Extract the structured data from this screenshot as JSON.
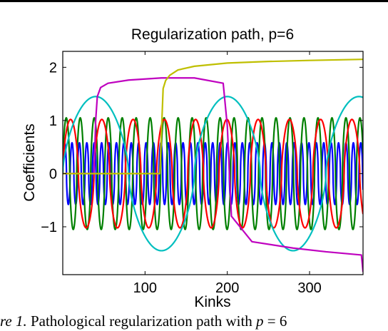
{
  "chart_data": {
    "type": "line",
    "title": "Regularization path, p=6",
    "xlabel": "Kinks",
    "ylabel": "Coefficients",
    "xlim": [
      0,
      365
    ],
    "ylim": [
      -1.9,
      2.3
    ],
    "xticks": [
      100,
      200,
      300
    ],
    "yticks": [
      -1,
      0,
      1,
      2
    ],
    "ytick_labels": [
      "−1",
      "0",
      "1",
      "2"
    ],
    "grid": false,
    "legend": "none",
    "series": [
      {
        "color": "#0000ff",
        "shape": "oscillation",
        "period": 9,
        "amplitude": 0.58,
        "start": 0,
        "end": 365
      },
      {
        "color": "#008000",
        "shape": "oscillation",
        "period": 17,
        "amplitude": 1.05,
        "start": 0,
        "end": 365
      },
      {
        "color": "#ff0000",
        "shape": "oscillation",
        "period": 38,
        "amplitude": 1.02,
        "start": 0,
        "end": 365
      },
      {
        "color": "#00bfbf",
        "shape": "oscillation",
        "period": 160,
        "amplitude": 1.45,
        "start": 0,
        "end": 365
      },
      {
        "color": "#bf00bf",
        "shape": "path",
        "x": [
          0,
          38,
          40,
          42,
          46,
          55,
          80,
          120,
          160,
          195,
          200,
          205,
          230,
          280,
          320,
          363,
          365
        ],
        "y": [
          0,
          0,
          1.0,
          1.45,
          1.62,
          1.7,
          1.76,
          1.8,
          1.8,
          1.7,
          0.9,
          -0.8,
          -1.28,
          -1.4,
          -1.47,
          -1.53,
          -1.85
        ]
      },
      {
        "color": "#bfbf00",
        "shape": "path",
        "x": [
          0,
          118,
          120,
          122,
          125,
          130,
          140,
          160,
          200,
          250,
          300,
          365
        ],
        "y": [
          0,
          0,
          0.8,
          1.6,
          1.75,
          1.85,
          1.95,
          2.02,
          2.08,
          2.11,
          2.13,
          2.15
        ]
      }
    ]
  },
  "caption": {
    "lead": "re 1.",
    "text": " Pathological regularization path with ",
    "math": "p",
    "tail": " = 6"
  },
  "colors": {
    "frame": "#000000",
    "background": "#ffffff"
  }
}
